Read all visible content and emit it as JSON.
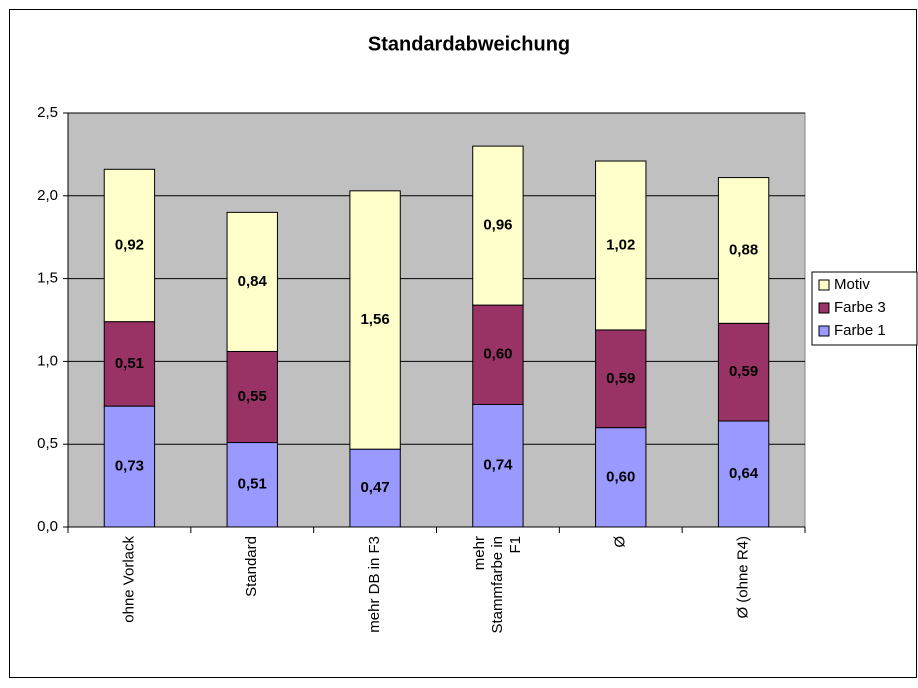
{
  "chart_data": {
    "type": "stacked_bar",
    "title": "Standardabweichung",
    "categories": [
      "ohne Vorlack",
      "Standard",
      "mehr DB in F3",
      "mehr Stammfarbe in F1",
      "Ø",
      "Ø (ohne R4)"
    ],
    "series": [
      {
        "name": "Farbe 1",
        "color": "#9999ff",
        "values": [
          0.73,
          0.51,
          0.47,
          0.74,
          0.6,
          0.64
        ],
        "value_labels": [
          "0,73",
          "0,51",
          "0,47",
          "0,74",
          "0,60",
          "0,64"
        ]
      },
      {
        "name": "Farbe 3",
        "color": "#993366",
        "values": [
          0.51,
          0.55,
          null,
          0.6,
          0.59,
          0.59
        ],
        "value_labels": [
          "0,51",
          "0,55",
          null,
          "0,60",
          "0,59",
          "0,59"
        ]
      },
      {
        "name": "Motiv",
        "color": "#ffffcc",
        "values": [
          0.92,
          0.84,
          1.56,
          0.96,
          1.02,
          0.88
        ],
        "value_labels": [
          "0,92",
          "0,84",
          "1,56",
          "0,96",
          "1,02",
          "0,88"
        ]
      }
    ],
    "ylim": [
      0,
      2.5
    ],
    "yticks": [
      {
        "value": 0,
        "label": "0,0"
      },
      {
        "value": 0.5,
        "label": "0,5"
      },
      {
        "value": 1,
        "label": "1,0"
      },
      {
        "value": 1.5,
        "label": "1,5"
      },
      {
        "value": 2,
        "label": "2,0"
      },
      {
        "value": 2.5,
        "label": "2,5"
      }
    ],
    "grid": true,
    "legend": "right",
    "plot_background": "#c0c0c0"
  }
}
